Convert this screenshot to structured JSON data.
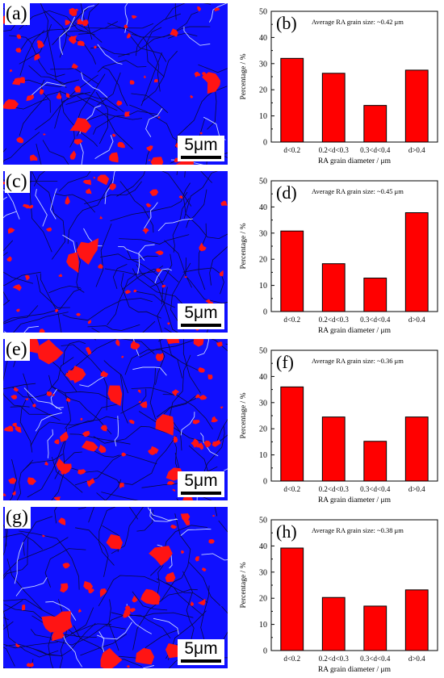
{
  "maps": [
    {
      "letter": "(a)",
      "scale_label": "5μm"
    },
    {
      "letter": "(c)",
      "scale_label": "5μm"
    },
    {
      "letter": "(e)",
      "scale_label": "5μm"
    },
    {
      "letter": "(g)",
      "scale_label": "5μm"
    }
  ],
  "colors": {
    "matrix": "#1010ff",
    "phase": "#ff1414",
    "bar": "#ff0000"
  },
  "chart_data": [
    {
      "type": "bar",
      "letter": "(b)",
      "annotation": "Average RA grain size: ~0.42 μm",
      "categories": [
        "d<0.2",
        "0.2<d<0.3",
        "0.3<d<0.4",
        "d>0.4"
      ],
      "values": [
        32,
        26.3,
        14,
        27.5
      ],
      "xlabel": "RA grain diameter / μm",
      "ylabel": "Percentage / %",
      "ylim": [
        0,
        50
      ],
      "yticks": [
        "0",
        "10",
        "20",
        "30",
        "40",
        "50"
      ]
    },
    {
      "type": "bar",
      "letter": "(d)",
      "annotation": "Average  RA grain size: ~0.45 μm",
      "categories": [
        "d<0.2",
        "0.2<d<0.3",
        "0.3<d<0.4",
        "d>0.4"
      ],
      "values": [
        30.8,
        18.3,
        12.8,
        37.8
      ],
      "xlabel": "RA grain diameter / μm",
      "ylabel": "Percentage / %",
      "ylim": [
        0,
        50
      ],
      "yticks": [
        "0",
        "10",
        "20",
        "30",
        "40",
        "50"
      ]
    },
    {
      "type": "bar",
      "letter": "(f)",
      "annotation": "Average RA grain size: ~0.36 μm",
      "categories": [
        "d<0.2",
        "0.2<d<0.3",
        "0.3<d<0.4",
        "d>0.4"
      ],
      "values": [
        36,
        24.5,
        15.2,
        24.5
      ],
      "xlabel": "RA grain diameter / μm",
      "ylabel": "Percentage / %",
      "ylim": [
        0,
        50
      ],
      "yticks": [
        "0",
        "10",
        "20",
        "30",
        "40",
        "50"
      ]
    },
    {
      "type": "bar",
      "letter": "(h)",
      "annotation": "Average RA grain size: ~0.38 μm",
      "categories": [
        "d<0.2",
        "0.2<d<0.3",
        "0.3<d<0.4",
        "d>0.4"
      ],
      "values": [
        39.2,
        20.3,
        17,
        23.2
      ],
      "xlabel": "RA grain diameter / μm",
      "ylabel": "Percentage / %",
      "ylim": [
        0,
        50
      ],
      "yticks": [
        "0",
        "10",
        "20",
        "30",
        "40",
        "50"
      ]
    }
  ]
}
